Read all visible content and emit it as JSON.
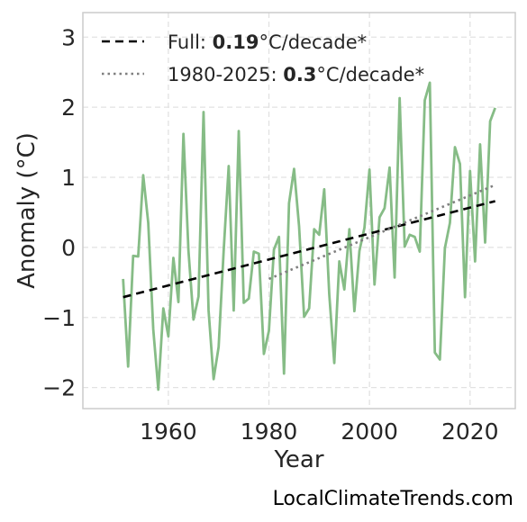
{
  "chart_data": {
    "type": "line",
    "xlabel": "Year",
    "ylabel": "Anomaly (°C)",
    "xlim": [
      1943,
      2029
    ],
    "ylim": [
      -2.3,
      3.35
    ],
    "xticks": [
      1960,
      1980,
      2000,
      2020
    ],
    "yticks": [
      -2,
      -1,
      0,
      1,
      2,
      3
    ],
    "ytick_labels": [
      "−2",
      "−1",
      "0",
      "1",
      "2",
      "3"
    ],
    "grid": true,
    "legend_position": "top-left",
    "series": [
      {
        "kind": "anomaly",
        "color": "#86bc86",
        "x": [
          1951,
          1952,
          1953,
          1954,
          1955,
          1956,
          1957,
          1958,
          1959,
          1960,
          1961,
          1962,
          1963,
          1964,
          1965,
          1966,
          1967,
          1968,
          1969,
          1970,
          1971,
          1972,
          1973,
          1974,
          1975,
          1976,
          1977,
          1978,
          1979,
          1980,
          1981,
          1982,
          1983,
          1984,
          1985,
          1986,
          1987,
          1988,
          1989,
          1990,
          1991,
          1992,
          1993,
          1994,
          1995,
          1996,
          1997,
          1998,
          1999,
          2000,
          2001,
          2002,
          2003,
          2004,
          2005,
          2006,
          2007,
          2008,
          2009,
          2010,
          2011,
          2012,
          2013,
          2014,
          2015,
          2016,
          2017,
          2018,
          2019,
          2020,
          2021,
          2022,
          2023,
          2024,
          2025
        ],
        "values": [
          -0.45,
          -1.7,
          -0.12,
          -0.13,
          1.03,
          0.35,
          -1.17,
          -2.03,
          -0.87,
          -1.27,
          -0.15,
          -0.78,
          1.62,
          -0.05,
          -1.03,
          -0.7,
          1.93,
          -0.9,
          -1.88,
          -1.42,
          -0.05,
          1.16,
          -0.9,
          1.66,
          -0.79,
          -0.73,
          -0.06,
          -0.09,
          -1.52,
          -1.19,
          -0.03,
          0.15,
          -1.8,
          0.63,
          1.12,
          0.3,
          -0.99,
          -0.87,
          0.26,
          0.18,
          0.83,
          -0.67,
          -1.65,
          -0.2,
          -0.6,
          0.26,
          -0.91,
          -0.05,
          0.28,
          1.11,
          -0.53,
          0.43,
          0.56,
          1.14,
          -0.43,
          2.13,
          0.01,
          0.18,
          0.15,
          -0.06,
          2.1,
          2.35,
          -1.5,
          -1.6,
          -0.01,
          0.35,
          1.43,
          1.19,
          -0.71,
          1.09,
          -0.2,
          1.47,
          0.07,
          1.8,
          1.99
        ]
      },
      {
        "kind": "trend",
        "name_prefix": "Full: ",
        "rate": "0.19",
        "unit": "°C/decade*",
        "color": "#000000",
        "dash": "9,6",
        "x": [
          1951,
          2025
        ],
        "values": [
          -0.71,
          0.66
        ]
      },
      {
        "kind": "trend",
        "name_prefix": "1980-2025: ",
        "rate": "0.3",
        "unit": "°C/decade*",
        "color": "#7f7f7f",
        "dash": "2.5,4",
        "x": [
          1980,
          2025
        ],
        "values": [
          -0.45,
          0.89
        ]
      }
    ]
  },
  "watermark": "LocalClimateTrends.com"
}
